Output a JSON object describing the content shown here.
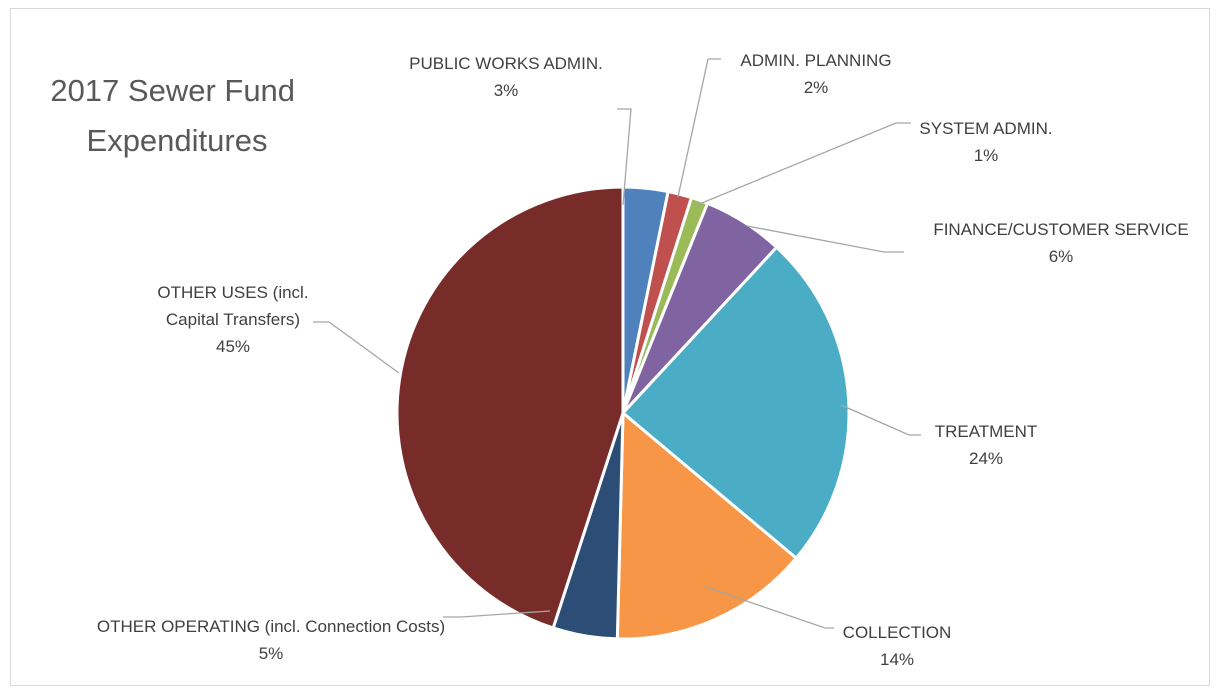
{
  "chart_data": {
    "type": "pie",
    "title": [
      "2017 Sewer Fund",
      "Expenditures"
    ],
    "start_angle_deg": 0,
    "direction": "clockwise",
    "slices": [
      {
        "label": [
          "PUBLIC WORKS ADMIN."
        ],
        "pct_text": "3%",
        "value": 3.2,
        "color": "#4f81bd"
      },
      {
        "label": [
          "ADMIN. PLANNING"
        ],
        "pct_text": "2%",
        "value": 1.7,
        "color": "#c0504d"
      },
      {
        "label": [
          "SYSTEM ADMIN."
        ],
        "pct_text": "1%",
        "value": 1.2,
        "color": "#9bbb59"
      },
      {
        "label": [
          "FINANCE/CUSTOMER SERVICE"
        ],
        "pct_text": "6%",
        "value": 5.8,
        "color": "#8064a2"
      },
      {
        "label": [
          "TREATMENT"
        ],
        "pct_text": "24%",
        "value": 24.2,
        "color": "#4bacc6"
      },
      {
        "label": [
          "COLLECTION"
        ],
        "pct_text": "14%",
        "value": 14.3,
        "color": "#f79646"
      },
      {
        "label": [
          "OTHER OPERATING (incl. Connection Costs)"
        ],
        "pct_text": "5%",
        "value": 4.6,
        "color": "#2c4d75"
      },
      {
        "label": [
          "OTHER USES (incl.",
          "Capital Transfers)"
        ],
        "pct_text": "45%",
        "value": 45.0,
        "color": "#772c2a"
      }
    ]
  }
}
